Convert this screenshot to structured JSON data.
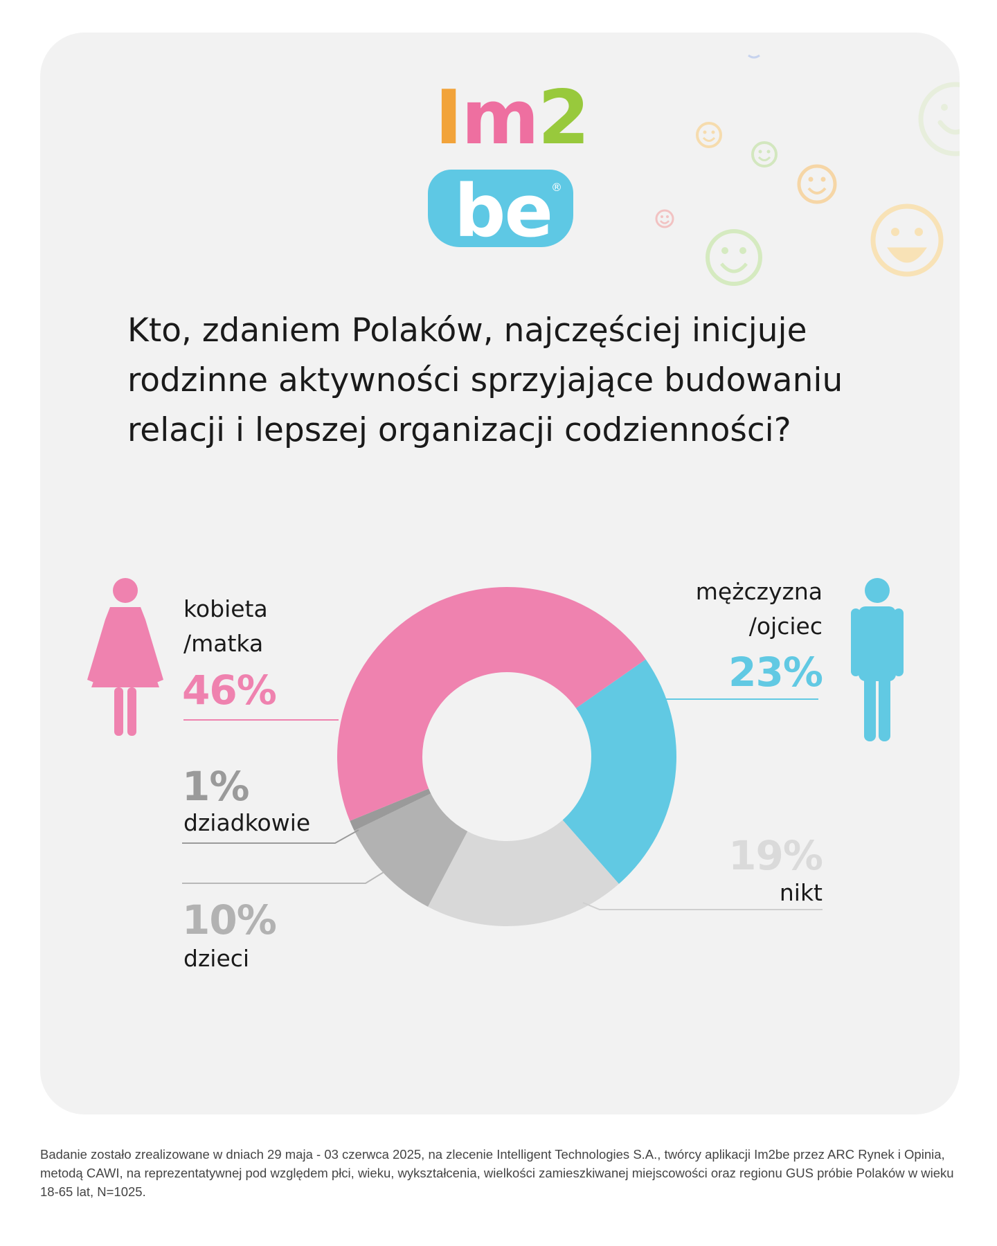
{
  "brand": {
    "logo_line1": "Im2",
    "logo_line2": "be",
    "logo_reg": "®"
  },
  "colors": {
    "pink": "#ef82af",
    "blue": "#61c9e3",
    "light_gray": "#d8d8d8",
    "mid_gray": "#b2b2b2",
    "dark_gray": "#9a9a9a",
    "card_bg": "#f2f2f2"
  },
  "icons": [
    "woman-icon",
    "man-icon",
    "smiley-icon"
  ],
  "chart_data": {
    "type": "pie",
    "title": "Kto, zdaniem Polaków, najczęściej inicjuje rodzinne aktywności sprzyjające budowaniu relacji i lepszej organizacji codzienności?",
    "donut": true,
    "unit": "%",
    "slices": [
      {
        "label_line1": "mężczyzna",
        "label_line2": "/ojciec",
        "value": 23,
        "display": "23%",
        "color": "#61c9e3"
      },
      {
        "label_line1": "nikt",
        "value": 19,
        "display": "19%",
        "color": "#d8d8d8"
      },
      {
        "label_line1": "dzieci",
        "value": 10,
        "display": "10%",
        "color": "#b2b2b2"
      },
      {
        "label_line1": "dziadkowie",
        "value": 1,
        "display": "1%",
        "color": "#9a9a9a"
      },
      {
        "label_line1": "kobieta",
        "label_line2": "/matka",
        "value": 46,
        "display": "46%",
        "color": "#ef82af"
      }
    ]
  },
  "footnote": "Badanie zostało zrealizowane w dniach 29 maja - 03 czerwca 2025, na zlecenie Intelligent Technologies S.A., twórcy aplikacji Im2be przez ARC Rynek i Opinia, metodą CAWI, na reprezentatywnej pod względem płci, wieku, wykształcenia, wielkości zamieszkiwanej miejscowości oraz regionu GUS próbie Polaków w wieku 18-65 lat, N=1025."
}
